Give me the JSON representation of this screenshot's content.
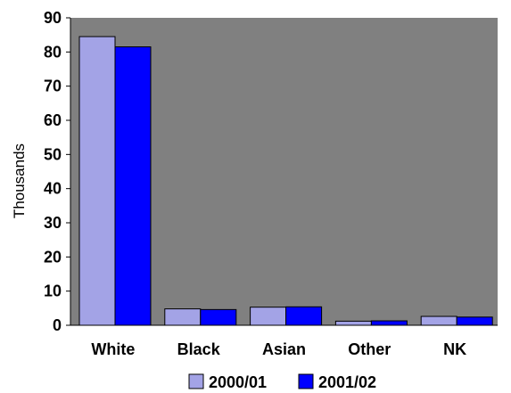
{
  "chart_data": {
    "type": "bar",
    "title": "",
    "xlabel": "",
    "ylabel": "Thousands",
    "ylim": [
      0,
      90
    ],
    "yticks": [
      0,
      10,
      20,
      30,
      40,
      50,
      60,
      70,
      80,
      90
    ],
    "categories": [
      "White",
      "Black",
      "Asian",
      "Other",
      "NK"
    ],
    "series": [
      {
        "name": "2000/01",
        "color": "#a3a3e6",
        "values": [
          84.5,
          4.8,
          5.3,
          1.2,
          2.6
        ]
      },
      {
        "name": "2001/02",
        "color": "#0000ff",
        "values": [
          81.5,
          4.6,
          5.4,
          1.3,
          2.4
        ]
      }
    ],
    "plot_background": "#808080",
    "grid": false,
    "legend": "bottom"
  }
}
